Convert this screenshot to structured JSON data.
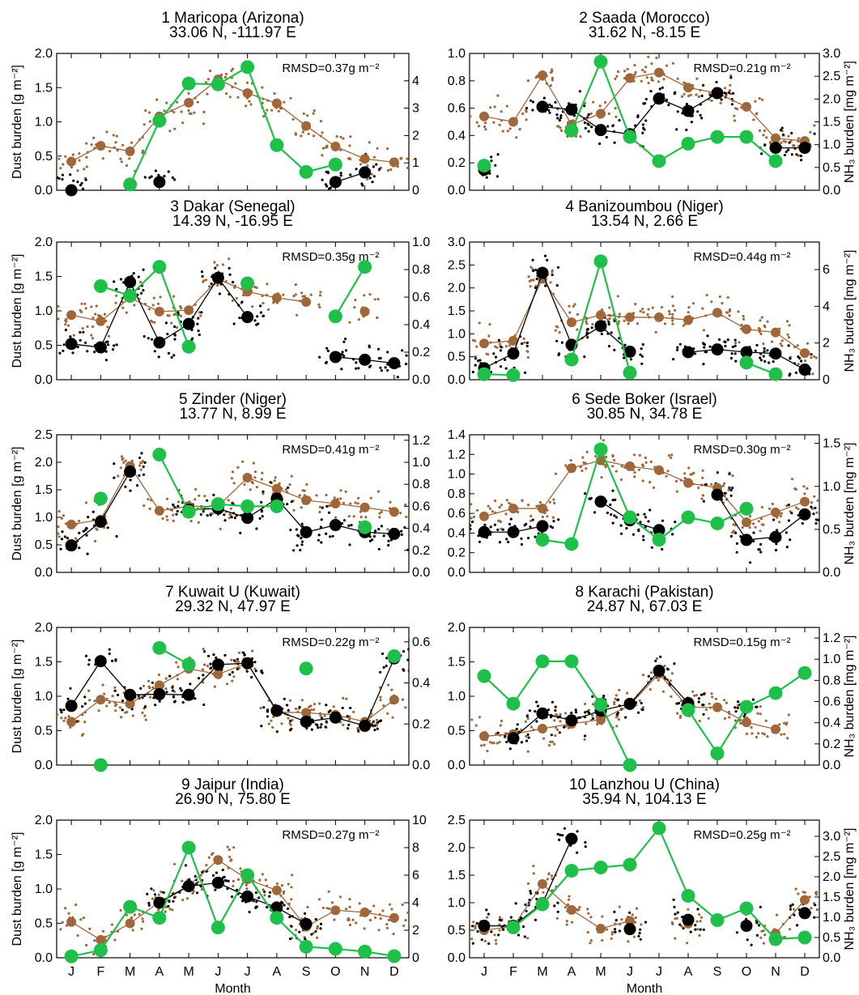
{
  "colors": {
    "black": "#000000",
    "brown": "#a0673a",
    "green": "#1fc04a",
    "axis": "#000000"
  },
  "months": [
    "J",
    "F",
    "M",
    "A",
    "M",
    "J",
    "J",
    "A",
    "S",
    "O",
    "N",
    "D"
  ],
  "xlabel": "Month",
  "ylabel_left": "Dust burden [g m⁻²]",
  "ylabel_right": "NH₃ burden [mg m⁻²]",
  "chart_data": [
    {
      "type": "line",
      "title": "1 Maricopa (Arizona)",
      "subtitle": "33.06 N, -111.97 E",
      "rmsd": "RMSD=0.37g m⁻²",
      "ylim": [
        0,
        2.0
      ],
      "yticks": [
        "0.0",
        "0.5",
        "1.0",
        "1.5",
        "2.0"
      ],
      "ylim_right": [
        0,
        5
      ],
      "yticks_right": [
        "0",
        "1",
        "2",
        "3",
        "4"
      ],
      "right_label": false,
      "series": [
        {
          "color": "black",
          "values": [
            0.0,
            null,
            null,
            0.12,
            null,
            null,
            null,
            null,
            null,
            0.12,
            0.26,
            null
          ]
        },
        {
          "color": "brown",
          "values": [
            0.42,
            0.65,
            0.57,
            1.08,
            1.28,
            1.62,
            1.42,
            1.27,
            0.94,
            0.64,
            0.46,
            0.41
          ]
        },
        {
          "color": "green",
          "values": [
            null,
            null,
            0.21,
            2.54,
            3.9,
            3.87,
            4.5,
            1.65,
            0.67,
            0.94,
            null,
            null
          ]
        }
      ]
    },
    {
      "type": "line",
      "title": "2 Saada (Morocco)",
      "subtitle": "31.62 N, -8.15 E",
      "rmsd": "RMSD=0.21g m⁻²",
      "ylim": [
        0,
        1.0
      ],
      "yticks": [
        "0.0",
        "0.2",
        "0.4",
        "0.6",
        "0.8",
        "1.0"
      ],
      "ylim_right": [
        0,
        3.0
      ],
      "yticks_right": [
        "0.0",
        "0.5",
        "1.0",
        "1.5",
        "2.0",
        "2.5",
        "3.0"
      ],
      "right_label": true,
      "series": [
        {
          "color": "black",
          "values": [
            0.15,
            null,
            0.61,
            0.59,
            0.44,
            0.41,
            0.67,
            0.58,
            0.71,
            null,
            0.31,
            0.31
          ]
        },
        {
          "color": "brown",
          "values": [
            0.54,
            0.5,
            0.84,
            0.48,
            0.56,
            0.82,
            0.86,
            0.75,
            0.71,
            0.61,
            0.38,
            0.36
          ]
        },
        {
          "color": "green",
          "values": [
            0.54,
            null,
            null,
            1.31,
            2.82,
            1.17,
            0.64,
            1.02,
            1.17,
            1.17,
            0.64,
            null
          ]
        }
      ]
    },
    {
      "type": "line",
      "title": "3 Dakar (Senegal)",
      "subtitle": "14.39 N, -16.95 E",
      "rmsd": "RMSD=0.35g m⁻²",
      "ylim": [
        0,
        2.0
      ],
      "yticks": [
        "0.0",
        "0.5",
        "1.0",
        "1.5",
        "2.0"
      ],
      "ylim_right": [
        0,
        1.0
      ],
      "yticks_right": [
        "0.0",
        "0.2",
        "0.4",
        "0.6",
        "0.8",
        "1.0"
      ],
      "right_label": false,
      "series": [
        {
          "color": "black",
          "values": [
            0.52,
            0.47,
            1.42,
            0.54,
            0.81,
            1.48,
            0.91,
            null,
            null,
            0.33,
            0.29,
            0.24
          ]
        },
        {
          "color": "brown",
          "values": [
            0.94,
            0.85,
            1.19,
            0.99,
            1.01,
            1.46,
            1.28,
            1.19,
            1.13,
            null,
            0.99,
            null
          ]
        },
        {
          "color": "green",
          "values": [
            null,
            0.68,
            0.61,
            0.82,
            0.24,
            null,
            0.7,
            null,
            null,
            0.46,
            0.82,
            null
          ]
        }
      ]
    },
    {
      "type": "line",
      "title": "4 Banizoumbou (Niger)",
      "subtitle": "13.54 N, 2.66 E",
      "rmsd": "RMSD=0.44g m⁻²",
      "ylim": [
        0,
        3.0
      ],
      "yticks": [
        "0.0",
        "0.5",
        "1.0",
        "1.5",
        "2.0",
        "2.5",
        "3.0"
      ],
      "ylim_right": [
        0,
        7.5
      ],
      "yticks_right": [
        "0",
        "2",
        "4",
        "6"
      ],
      "right_label": true,
      "series": [
        {
          "color": "black",
          "values": [
            0.25,
            0.57,
            2.33,
            0.76,
            1.17,
            0.61,
            null,
            0.6,
            0.66,
            0.6,
            0.57,
            0.22
          ]
        },
        {
          "color": "brown",
          "values": [
            0.79,
            0.85,
            2.2,
            1.25,
            1.41,
            1.36,
            1.36,
            1.3,
            1.46,
            1.1,
            1.03,
            0.58
          ]
        },
        {
          "color": "green",
          "values": [
            0.3,
            0.25,
            null,
            1.1,
            6.45,
            0.38,
            null,
            null,
            null,
            0.93,
            0.3,
            null
          ]
        }
      ]
    },
    {
      "type": "line",
      "title": "5 Zinder (Niger)",
      "subtitle": "13.77 N, 8.99 E",
      "rmsd": "RMSD=0.41g m⁻²",
      "ylim": [
        0,
        2.5
      ],
      "yticks": [
        "0.0",
        "0.5",
        "1.0",
        "1.5",
        "2.0",
        "2.5"
      ],
      "ylim_right": [
        0,
        1.25
      ],
      "yticks_right": [
        "0.0",
        "0.2",
        "0.4",
        "0.6",
        "0.8",
        "1.0",
        "1.2"
      ],
      "right_label": false,
      "series": [
        {
          "color": "black",
          "values": [
            0.49,
            0.92,
            1.83,
            null,
            1.14,
            1.16,
            0.99,
            1.34,
            0.73,
            0.86,
            0.73,
            0.7
          ]
        },
        {
          "color": "brown",
          "values": [
            0.87,
            0.96,
            1.93,
            1.12,
            1.2,
            1.2,
            1.72,
            1.52,
            1.31,
            1.25,
            1.18,
            1.1
          ]
        },
        {
          "color": "green",
          "values": [
            null,
            0.67,
            null,
            1.07,
            0.55,
            0.62,
            0.6,
            0.6,
            null,
            null,
            0.41,
            null
          ]
        }
      ]
    },
    {
      "type": "line",
      "title": "6 Sede Boker (Israel)",
      "subtitle": "30.85 N, 34.78 E",
      "rmsd": "RMSD=0.30g m⁻²",
      "ylim": [
        0,
        1.4
      ],
      "yticks": [
        "0.0",
        "0.2",
        "0.4",
        "0.6",
        "0.8",
        "1.0",
        "1.2",
        "1.4"
      ],
      "ylim_right": [
        0,
        1.6
      ],
      "yticks_right": [
        "0.0",
        "0.5",
        "1.0",
        "1.5"
      ],
      "right_label": true,
      "series": [
        {
          "color": "black",
          "values": [
            0.41,
            0.41,
            0.47,
            null,
            0.72,
            0.53,
            0.43,
            null,
            0.79,
            0.33,
            0.36,
            0.59
          ]
        },
        {
          "color": "brown",
          "values": [
            0.57,
            0.65,
            0.65,
            1.06,
            1.14,
            1.08,
            1.04,
            0.91,
            0.86,
            0.51,
            0.61,
            0.72
          ]
        },
        {
          "color": "green",
          "values": [
            null,
            null,
            0.38,
            0.33,
            1.43,
            0.64,
            0.38,
            0.64,
            0.57,
            0.74,
            null,
            null
          ]
        }
      ]
    },
    {
      "type": "line",
      "title": "7 Kuwait U (Kuwait)",
      "subtitle": "29.32 N, 47.97 E",
      "rmsd": "RMSD=0.22g m⁻²",
      "ylim": [
        0,
        2.0
      ],
      "yticks": [
        "0.0",
        "0.5",
        "1.0",
        "1.5",
        "2.0"
      ],
      "ylim_right": [
        0,
        0.67
      ],
      "yticks_right": [
        "0.0",
        "0.2",
        "0.4",
        "0.6"
      ],
      "right_label": false,
      "series": [
        {
          "color": "black",
          "values": [
            0.86,
            1.51,
            1.02,
            1.03,
            1.02,
            1.46,
            1.48,
            0.79,
            0.63,
            0.69,
            0.57,
            1.55
          ]
        },
        {
          "color": "brown",
          "values": [
            0.63,
            0.95,
            0.89,
            1.16,
            1.4,
            1.32,
            1.48,
            0.77,
            0.76,
            0.73,
            0.63,
            0.95
          ]
        },
        {
          "color": "green",
          "values": [
            null,
            0.0,
            null,
            0.57,
            0.49,
            null,
            null,
            null,
            0.47,
            null,
            null,
            0.53
          ]
        }
      ]
    },
    {
      "type": "line",
      "title": "8 Karachi (Pakistan)",
      "subtitle": "24.87 N, 67.03 E",
      "rmsd": "RMSD=0.15g m⁻²",
      "ylim": [
        0,
        2.0
      ],
      "yticks": [
        "0.0",
        "0.5",
        "1.0",
        "1.5",
        "2.0"
      ],
      "ylim_right": [
        0,
        1.3
      ],
      "yticks_right": [
        "0.0",
        "0.2",
        "0.4",
        "0.6",
        "0.8",
        "1.0",
        "1.2"
      ],
      "right_label": true,
      "series": [
        {
          "color": "black",
          "values": [
            null,
            0.39,
            0.75,
            0.65,
            0.79,
            0.89,
            1.37,
            0.9,
            null,
            0.85,
            null,
            null
          ]
        },
        {
          "color": "brown",
          "values": [
            0.42,
            0.45,
            0.53,
            0.6,
            0.66,
            0.87,
            1.33,
            0.84,
            0.84,
            0.62,
            0.52,
            null
          ]
        },
        {
          "color": "green",
          "values": [
            0.84,
            0.58,
            0.98,
            0.98,
            0.57,
            0.0,
            null,
            0.52,
            0.11,
            0.55,
            0.68,
            0.87
          ]
        }
      ]
    },
    {
      "type": "line",
      "title": "9 Jaipur (India)",
      "subtitle": "26.90 N, 75.80 E",
      "rmsd": "RMSD=0.27g m⁻²",
      "ylim": [
        0,
        2.0
      ],
      "yticks": [
        "0.0",
        "0.5",
        "1.0",
        "1.5",
        "2.0"
      ],
      "ylim_right": [
        0,
        10
      ],
      "yticks_right": [
        "0",
        "2",
        "4",
        "6",
        "8",
        "10"
      ],
      "right_label": false,
      "series": [
        {
          "color": "black",
          "values": [
            null,
            null,
            null,
            0.8,
            1.04,
            1.09,
            0.89,
            0.73,
            0.49,
            null,
            null,
            null
          ]
        },
        {
          "color": "brown",
          "values": [
            0.52,
            0.26,
            0.5,
            0.81,
            1.05,
            1.42,
            1.14,
            0.98,
            0.45,
            0.69,
            0.66,
            0.58
          ]
        },
        {
          "color": "green",
          "values": [
            0.1,
            0.55,
            3.7,
            2.9,
            8.0,
            2.2,
            6.0,
            2.9,
            0.8,
            0.65,
            0.45,
            0.12
          ]
        }
      ]
    },
    {
      "type": "line",
      "title": "10 Lanzhou U (China)",
      "subtitle": "35.94 N, 104.13 E",
      "rmsd": "RMSD=0.25g m⁻²",
      "ylim": [
        0,
        2.5
      ],
      "yticks": [
        "0.0",
        "0.5",
        "1.0",
        "1.5",
        "2.0",
        "2.5"
      ],
      "ylim_right": [
        0,
        3.4
      ],
      "yticks_right": [
        "0.0",
        "0.5",
        "1.0",
        "1.5",
        "2.0",
        "2.5",
        "3.0"
      ],
      "right_label": true,
      "series": [
        {
          "color": "black",
          "values": [
            0.58,
            0.58,
            0.99,
            2.16,
            null,
            0.52,
            null,
            0.69,
            null,
            0.58,
            null,
            0.81
          ]
        },
        {
          "color": "brown",
          "values": [
            0.5,
            0.57,
            1.34,
            0.87,
            0.53,
            0.67,
            null,
            0.62,
            null,
            null,
            0.44,
            1.05
          ]
        },
        {
          "color": "green",
          "values": [
            null,
            0.75,
            1.32,
            2.15,
            2.23,
            2.3,
            3.2,
            1.53,
            0.93,
            1.22,
            0.46,
            0.5
          ]
        }
      ]
    }
  ]
}
